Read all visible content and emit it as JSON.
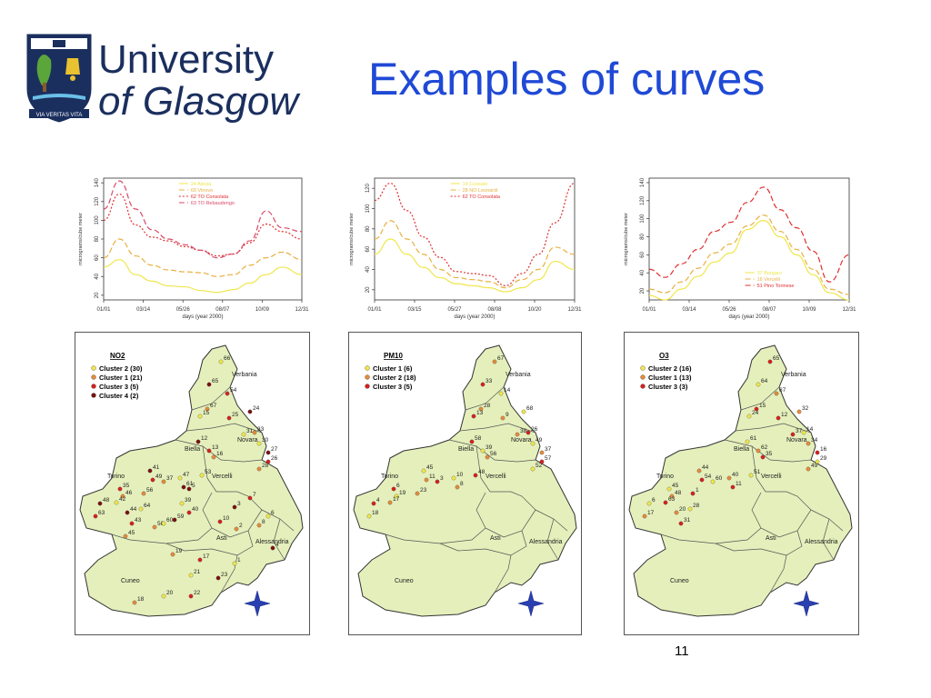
{
  "logo": {
    "line1": "University",
    "line2": "of Glasgow",
    "motto": "VIA VERITAS VITA"
  },
  "title": "Examples of curves",
  "page_number": "11",
  "colors": {
    "title": "#1f49d6",
    "map_fill": "#e4efbb",
    "yellow": "#efe64a",
    "orange": "#e58a3a",
    "red": "#d81f1f",
    "darkred": "#7a1010"
  },
  "chart_data": [
    {
      "type": "line",
      "xlabel": "days (year 2000)",
      "ylabel": "micrograms/cube meter",
      "xticks": [
        "01/01",
        "03/14",
        "05/26",
        "08/07",
        "10/09",
        "12/31"
      ],
      "yticks": [
        "20",
        "40",
        "60",
        "80",
        "100",
        "120",
        "140"
      ],
      "ylim": [
        15,
        145
      ],
      "x": [
        1,
        30,
        60,
        90,
        120,
        150,
        180,
        210,
        240,
        270,
        300,
        330,
        366
      ],
      "series": [
        {
          "name": "24 Alesia",
          "color": "#efe64a",
          "dash": "0",
          "values": [
            50,
            58,
            42,
            35,
            30,
            29,
            25,
            23,
            26,
            33,
            42,
            50,
            42
          ]
        },
        {
          "name": "60 Vinovo",
          "color": "#e8b040",
          "dash": "6 3",
          "values": [
            60,
            80,
            62,
            52,
            47,
            45,
            44,
            40,
            42,
            52,
            60,
            66,
            58
          ]
        },
        {
          "name": "62 TO Consolata",
          "color": "#e03030",
          "dash": "2 2",
          "values": [
            100,
            128,
            95,
            82,
            78,
            72,
            68,
            62,
            64,
            76,
            96,
            88,
            80
          ]
        },
        {
          "name": "63 TO Rebaudengo",
          "color": "#d84a6a",
          "dash": "6 3",
          "values": [
            112,
            142,
            112,
            90,
            80,
            74,
            68,
            60,
            64,
            78,
            110,
            92,
            88
          ]
        }
      ]
    },
    {
      "type": "line",
      "xlabel": "days (year 2000)",
      "ylabel": "micrograms/cube meter",
      "xticks": [
        "01/01",
        "03/15",
        "05/27",
        "08/08",
        "10/20",
        "12/31"
      ],
      "yticks": [
        "20",
        "40",
        "60",
        "80",
        "100",
        "120"
      ],
      "ylim": [
        10,
        130
      ],
      "x": [
        1,
        30,
        60,
        90,
        120,
        150,
        180,
        210,
        240,
        270,
        300,
        330,
        366
      ],
      "series": [
        {
          "name": "14 Cossato",
          "color": "#efe64a",
          "dash": "0",
          "values": [
            55,
            70,
            55,
            42,
            32,
            26,
            24,
            22,
            18,
            22,
            30,
            48,
            40
          ]
        },
        {
          "name": "28 NO Leonardi",
          "color": "#e8b040",
          "dash": "6 3",
          "values": [
            70,
            88,
            70,
            55,
            40,
            32,
            30,
            28,
            22,
            30,
            40,
            62,
            55
          ]
        },
        {
          "name": "62 TO Consolata",
          "color": "#e03030",
          "dash": "2 2",
          "values": [
            108,
            125,
            98,
            72,
            52,
            38,
            36,
            34,
            24,
            36,
            55,
            86,
            125
          ]
        }
      ]
    },
    {
      "type": "line",
      "xlabel": "days (year 2000)",
      "ylabel": "micrograms/cube meter",
      "xticks": [
        "01/01",
        "03/14",
        "05/26",
        "08/07",
        "10/09",
        "12/31"
      ],
      "yticks": [
        "20",
        "40",
        "60",
        "80",
        "100",
        "120",
        "140"
      ],
      "ylim": [
        10,
        145
      ],
      "x": [
        1,
        30,
        60,
        90,
        120,
        150,
        180,
        210,
        240,
        270,
        300,
        330,
        366
      ],
      "series": [
        {
          "name": "37 Borgaro",
          "color": "#efe64a",
          "dash": "0",
          "values": [
            15,
            10,
            22,
            36,
            52,
            62,
            88,
            98,
            80,
            60,
            38,
            18,
            10
          ]
        },
        {
          "name": "16 Vercelli",
          "color": "#e8b040",
          "dash": "6 3",
          "values": [
            22,
            18,
            30,
            45,
            62,
            72,
            92,
            104,
            86,
            66,
            44,
            22,
            16
          ]
        },
        {
          "name": "51 Pino Torinese",
          "color": "#e03030",
          "dash": "6 3",
          "values": [
            44,
            35,
            50,
            66,
            86,
            96,
            118,
            135,
            110,
            90,
            64,
            30,
            60
          ]
        }
      ]
    }
  ],
  "maps": [
    {
      "legend_title": "NO2",
      "legend": [
        {
          "label": "Cluster 2  (30)",
          "color": "#efe64a"
        },
        {
          "label": "Cluster 1  (21)",
          "color": "#e58a3a"
        },
        {
          "label": "Cluster 3    (5)",
          "color": "#d81f1f"
        },
        {
          "label": "Cluster 4    (2)",
          "color": "#7a1010"
        }
      ],
      "places": [
        "Verbania",
        "Biella",
        "Novara",
        "Torino",
        "Vercelli",
        "Asti",
        "Alessandria",
        "Cuneo"
      ],
      "numbers": [
        "66",
        "65",
        "54",
        "67",
        "15",
        "24",
        "25",
        "33",
        "30",
        "27",
        "26",
        "28",
        "31",
        "12",
        "13",
        "16",
        "53",
        "41",
        "49",
        "37",
        "47",
        "61",
        "35",
        "46",
        "42",
        "48",
        "63",
        "56",
        "64",
        "44",
        "43",
        "50",
        "60",
        "59",
        "40",
        "45",
        "39",
        "5",
        "10",
        "2",
        "6",
        "3",
        "7",
        "8",
        "1",
        "4",
        "17",
        "19",
        "21",
        "23",
        "22",
        "18",
        "20"
      ]
    },
    {
      "legend_title": "PM10",
      "legend": [
        {
          "label": "Cluster 1    (6)",
          "color": "#efe64a"
        },
        {
          "label": "Cluster 2  (18)",
          "color": "#e58a3a"
        },
        {
          "label": "Cluster 3    (5)",
          "color": "#d81f1f"
        }
      ],
      "places": [
        "Verbania",
        "Biella",
        "Novara",
        "Torino",
        "Vercelli",
        "Asti",
        "Alessandria",
        "Cuneo"
      ],
      "numbers": [
        "67",
        "33",
        "14",
        "28",
        "13",
        "68",
        "9",
        "26",
        "49",
        "37",
        "57",
        "52",
        "38",
        "58",
        "39",
        "56",
        "48",
        "45",
        "11",
        "3",
        "10",
        "8",
        "6",
        "19",
        "17",
        "4",
        "18",
        "23"
      ]
    },
    {
      "legend_title": "O3",
      "legend": [
        {
          "label": "Cluster 2  (16)",
          "color": "#efe64a"
        },
        {
          "label": "Cluster 1  (13)",
          "color": "#e58a3a"
        },
        {
          "label": "Cluster 3    (3)",
          "color": "#d81f1f"
        }
      ],
      "places": [
        "Verbania",
        "Biella",
        "Novara",
        "Torino",
        "Vercelli",
        "Asti",
        "Alessandria",
        "Cuneo"
      ],
      "numbers": [
        "65",
        "64",
        "67",
        "15",
        "24",
        "32",
        "12",
        "14",
        "34",
        "16",
        "29",
        "49",
        "37",
        "61",
        "62",
        "35",
        "51",
        "44",
        "54",
        "60",
        "40",
        "11",
        "45",
        "48",
        "63",
        "6",
        "17",
        "1",
        "28",
        "20",
        "31"
      ]
    }
  ]
}
